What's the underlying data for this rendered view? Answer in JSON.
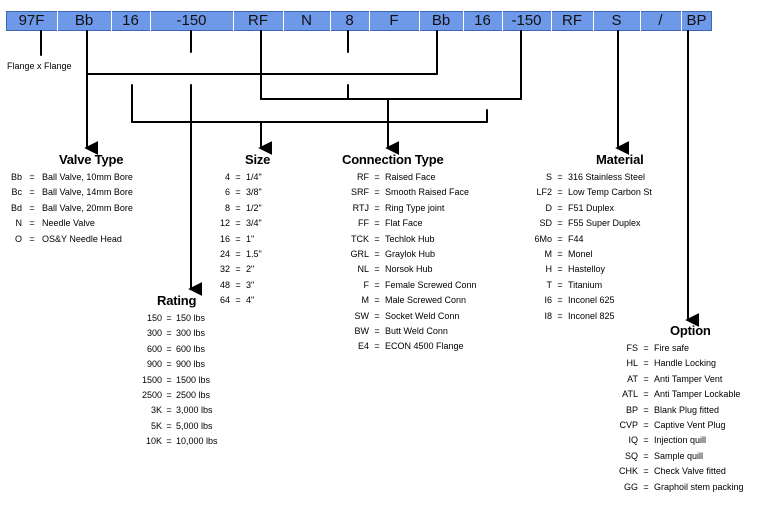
{
  "code_segments": [
    "97F",
    "Bb",
    "16",
    "-150",
    "RF",
    "N",
    "8",
    "F",
    "Bb",
    "16",
    "-150",
    "RF",
    "S",
    "/",
    "BP"
  ],
  "flange_note": "Flange x Flange",
  "sections": {
    "valve_type": {
      "title": "Valve Type",
      "items": [
        {
          "k": "Bb",
          "v": "Ball Valve, 10mm Bore"
        },
        {
          "k": "Bc",
          "v": "Ball Valve, 14mm Bore"
        },
        {
          "k": "Bd",
          "v": "Ball Valve, 20mm Bore"
        },
        {
          "k": "N",
          "v": "Needle Valve"
        },
        {
          "k": "O",
          "v": "OS&Y Needle Head"
        }
      ]
    },
    "size": {
      "title": "Size",
      "items": [
        {
          "k": "4",
          "v": "1/4\""
        },
        {
          "k": "6",
          "v": "3/8\""
        },
        {
          "k": "8",
          "v": "1/2\""
        },
        {
          "k": "12",
          "v": "3/4\""
        },
        {
          "k": "16",
          "v": "1\""
        },
        {
          "k": "24",
          "v": "1.5\""
        },
        {
          "k": "32",
          "v": "2\""
        },
        {
          "k": "48",
          "v": "3\""
        },
        {
          "k": "64",
          "v": "4\""
        }
      ]
    },
    "connection_type": {
      "title": "Connection Type",
      "items": [
        {
          "k": "RF",
          "v": "Raised Face"
        },
        {
          "k": "SRF",
          "v": "Smooth Raised Face"
        },
        {
          "k": "RTJ",
          "v": "Ring Type joint"
        },
        {
          "k": "FF",
          "v": "Flat Face"
        },
        {
          "k": "TCK",
          "v": "Techlok Hub"
        },
        {
          "k": "GRL",
          "v": "Graylok Hub"
        },
        {
          "k": "NL",
          "v": "Norsok Hub"
        },
        {
          "k": "F",
          "v": "Female Screwed Conn"
        },
        {
          "k": "M",
          "v": "Male Screwed Conn"
        },
        {
          "k": "SW",
          "v": "Socket Weld Conn"
        },
        {
          "k": "BW",
          "v": "Butt Weld Conn"
        },
        {
          "k": "E4",
          "v": "ECON 4500 Flange"
        }
      ]
    },
    "material": {
      "title": "Material",
      "items": [
        {
          "k": "S",
          "v": "316 Stainless Steel"
        },
        {
          "k": "LF2",
          "v": "Low Temp Carbon St"
        },
        {
          "k": "D",
          "v": "F51 Duplex"
        },
        {
          "k": "SD",
          "v": "F55 Super Duplex"
        },
        {
          "k": "6Mo",
          "v": "F44"
        },
        {
          "k": "M",
          "v": "Monel"
        },
        {
          "k": "H",
          "v": "Hastelloy"
        },
        {
          "k": "T",
          "v": "Titanium"
        },
        {
          "k": "I6",
          "v": "Inconel 625"
        },
        {
          "k": "I8",
          "v": "Inconel 825"
        }
      ]
    },
    "rating": {
      "title": "Rating",
      "items": [
        {
          "k": "150",
          "v": "150 lbs"
        },
        {
          "k": "300",
          "v": "300 lbs"
        },
        {
          "k": "600",
          "v": "600 lbs"
        },
        {
          "k": "900",
          "v": "900 lbs"
        },
        {
          "k": "1500",
          "v": "1500 lbs"
        },
        {
          "k": "2500",
          "v": "2500 lbs"
        },
        {
          "k": "3K",
          "v": "3,000 lbs"
        },
        {
          "k": "5K",
          "v": "5,000 lbs"
        },
        {
          "k": "10K",
          "v": "10,000 lbs"
        }
      ]
    },
    "option": {
      "title": "Option",
      "items": [
        {
          "k": "FS",
          "v": "Fire safe"
        },
        {
          "k": "HL",
          "v": "Handle Locking"
        },
        {
          "k": "AT",
          "v": "Anti Tamper Vent"
        },
        {
          "k": "ATL",
          "v": "Anti Tamper Lockable"
        },
        {
          "k": "BP",
          "v": "Blank Plug fitted"
        },
        {
          "k": "CVP",
          "v": "Captive Vent Plug"
        },
        {
          "k": "IQ",
          "v": "Injection quill"
        },
        {
          "k": "SQ",
          "v": "Sample quill"
        },
        {
          "k": "CHK",
          "v": "Check Valve fitted"
        },
        {
          "k": "GG",
          "v": "Graphoil stem packing"
        }
      ]
    }
  },
  "colors": {
    "code_bar": "#6e98e8",
    "lines": "#000000"
  }
}
